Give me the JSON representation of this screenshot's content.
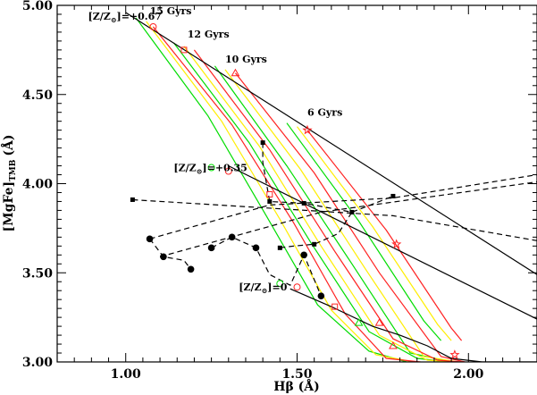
{
  "chart_data": {
    "type": "line",
    "xlabel": "Hβ (Å)",
    "ylabel": "[MgFe]",
    "ylabel_sub": "TMB",
    "ylabel_unit": "(Å)",
    "xlim": [
      0.8,
      2.2
    ],
    "ylim": [
      3.0,
      5.0
    ],
    "x_ticks": [
      1.0,
      1.5,
      2.0
    ],
    "x_tick_labels": [
      "1.00",
      "1.50",
      "2.00"
    ],
    "y_ticks": [
      3.0,
      3.5,
      4.0,
      4.5,
      5.0
    ],
    "y_tick_labels": [
      "3.00",
      "3.50",
      "4.00",
      "4.50",
      "5.00"
    ],
    "annotations": [
      {
        "text": "15 Gyrs",
        "x": 1.07,
        "y": 4.95
      },
      {
        "text": "12 Gyrs",
        "x": 1.18,
        "y": 4.82
      },
      {
        "text": "10 Gyrs",
        "x": 1.29,
        "y": 4.68
      },
      {
        "text": "6 Gyrs",
        "x": 1.53,
        "y": 4.38
      },
      {
        "text": "[Z/Z",
        "sub": "⊙",
        "tail": "]=+0.67",
        "x": 0.89,
        "y": 4.92
      },
      {
        "text": "[Z/Z",
        "sub": "⊙",
        "tail": "]=+0.35",
        "x": 1.14,
        "y": 4.07
      },
      {
        "text": "[Z/Z",
        "sub": "⊙",
        "tail": "]=0",
        "x": 1.33,
        "y": 3.4
      }
    ],
    "series": [
      {
        "color": "#00dd00",
        "style": "solid",
        "x": [
          1.03,
          1.24,
          1.41,
          1.56,
          1.71,
          1.82
        ],
        "y": [
          4.93,
          4.38,
          3.82,
          3.32,
          3.06,
          3.0
        ]
      },
      {
        "color": "#00dd00",
        "style": "solid",
        "x": [
          1.14,
          1.36,
          1.54,
          1.71,
          1.85,
          1.94
        ],
        "y": [
          4.79,
          4.23,
          3.67,
          3.17,
          3.02,
          3.0
        ]
      },
      {
        "color": "#00dd00",
        "style": "solid",
        "x": [
          1.26,
          1.47,
          1.66,
          1.83,
          1.95
        ],
        "y": [
          4.66,
          4.1,
          3.55,
          3.05,
          3.0
        ]
      },
      {
        "color": "#00dd00",
        "style": "solid",
        "x": [
          1.47,
          1.68,
          1.87,
          1.92
        ],
        "y": [
          4.34,
          3.79,
          3.23,
          3.12
        ]
      },
      {
        "color": "#ffee00",
        "style": "solid",
        "x": [
          1.06,
          1.28,
          1.45,
          1.6,
          1.73,
          1.84
        ],
        "y": [
          4.91,
          4.35,
          3.8,
          3.29,
          3.04,
          3.0
        ]
      },
      {
        "color": "#ffee00",
        "style": "solid",
        "x": [
          1.17,
          1.39,
          1.57,
          1.74,
          1.88,
          1.96
        ],
        "y": [
          4.77,
          4.21,
          3.65,
          3.15,
          3.01,
          3.0
        ]
      },
      {
        "color": "#ffee00",
        "style": "solid",
        "x": [
          1.29,
          1.51,
          1.7,
          1.87,
          1.97
        ],
        "y": [
          4.64,
          4.08,
          3.52,
          3.03,
          3.0
        ]
      },
      {
        "color": "#ffee00",
        "style": "solid",
        "x": [
          1.5,
          1.72,
          1.91,
          1.95
        ],
        "y": [
          4.32,
          3.76,
          3.21,
          3.12
        ]
      },
      {
        "color": "#ff2222",
        "style": "solid",
        "x": [
          1.08,
          1.31,
          1.49,
          1.64,
          1.76,
          1.86
        ],
        "y": [
          4.88,
          4.33,
          3.78,
          3.27,
          3.02,
          3.0
        ]
      },
      {
        "color": "#ff2222",
        "style": "solid",
        "x": [
          1.2,
          1.42,
          1.61,
          1.78,
          1.91,
          1.98
        ],
        "y": [
          4.75,
          4.19,
          3.62,
          3.13,
          3.01,
          3.0
        ]
      },
      {
        "color": "#ff2222",
        "style": "solid",
        "x": [
          1.32,
          1.55,
          1.74,
          1.92,
          1.99
        ],
        "y": [
          4.62,
          4.06,
          3.5,
          3.03,
          3.0
        ]
      },
      {
        "color": "#ff2222",
        "style": "solid",
        "x": [
          1.53,
          1.76,
          1.95,
          1.98
        ],
        "y": [
          4.3,
          3.74,
          3.19,
          3.12
        ]
      },
      {
        "color": "#000000",
        "style": "solid",
        "x": [
          1.0,
          2.2
        ],
        "y": [
          4.96,
          3.49
        ]
      },
      {
        "color": "#000000",
        "style": "solid",
        "x": [
          1.3,
          2.2
        ],
        "y": [
          4.1,
          3.24
        ]
      },
      {
        "color": "#000000",
        "style": "solid",
        "x": [
          1.48,
          1.6,
          1.72,
          1.8,
          1.88,
          1.95,
          2.04,
          2.2
        ],
        "y": [
          3.41,
          3.31,
          3.2,
          3.15,
          3.09,
          3.02,
          3.0,
          3.0
        ]
      },
      {
        "color": "#000000",
        "style": "dashed",
        "x": [
          1.02,
          1.78,
          2.2
        ],
        "y": [
          3.91,
          3.82,
          3.68
        ]
      },
      {
        "color": "#000000",
        "style": "dashed",
        "x": [
          1.07,
          1.42,
          1.78,
          2.2
        ],
        "y": [
          3.69,
          3.88,
          3.92,
          4.05
        ]
      },
      {
        "color": "#000000",
        "style": "dashed",
        "x": [
          1.1,
          1.57,
          2.2
        ],
        "y": [
          3.59,
          3.84,
          4.01
        ]
      },
      {
        "color": "#000000",
        "style": "dashed",
        "x": [
          1.4,
          1.4,
          1.42,
          1.52,
          1.66,
          1.78
        ],
        "y": [
          4.23,
          4.12,
          3.9,
          3.89,
          3.84,
          3.93
        ]
      },
      {
        "color": "#000000",
        "style": "dashed",
        "x": [
          1.45,
          1.49,
          1.55,
          1.62,
          1.66
        ],
        "y": [
          3.64,
          3.65,
          3.66,
          3.72,
          3.84
        ]
      },
      {
        "color": "#000000",
        "style": "dashed",
        "x": [
          1.07,
          1.11,
          1.17,
          1.19
        ],
        "y": [
          3.69,
          3.59,
          3.57,
          3.52
        ]
      },
      {
        "color": "#000000",
        "style": "dashed",
        "x": [
          1.25,
          1.31,
          1.38,
          1.42,
          1.48,
          1.52,
          1.57
        ],
        "y": [
          3.64,
          3.7,
          3.64,
          3.49,
          3.43,
          3.6,
          3.37
        ]
      }
    ],
    "markers": [
      {
        "shape": "circle",
        "x": 1.07,
        "y": 3.69
      },
      {
        "shape": "circle",
        "x": 1.11,
        "y": 3.59
      },
      {
        "shape": "circle",
        "x": 1.19,
        "y": 3.52
      },
      {
        "shape": "circle",
        "x": 1.25,
        "y": 3.64
      },
      {
        "shape": "circle",
        "x": 1.31,
        "y": 3.7
      },
      {
        "shape": "circle",
        "x": 1.38,
        "y": 3.64
      },
      {
        "shape": "circle",
        "x": 1.52,
        "y": 3.6
      },
      {
        "shape": "circle",
        "x": 1.57,
        "y": 3.37
      },
      {
        "shape": "square",
        "x": 1.02,
        "y": 3.91
      },
      {
        "shape": "square",
        "x": 1.4,
        "y": 4.23
      },
      {
        "shape": "square",
        "x": 1.42,
        "y": 3.9
      },
      {
        "shape": "square",
        "x": 1.52,
        "y": 3.89
      },
      {
        "shape": "square",
        "x": 1.66,
        "y": 3.84
      },
      {
        "shape": "square",
        "x": 1.78,
        "y": 3.93
      },
      {
        "shape": "square",
        "x": 1.45,
        "y": 3.64
      },
      {
        "shape": "square",
        "x": 1.55,
        "y": 3.66
      },
      {
        "shape": "open-circle",
        "color": "#ff2222",
        "x": 1.08,
        "y": 4.88
      },
      {
        "shape": "open-square",
        "color": "#ff2222",
        "x": 1.17,
        "y": 4.75
      },
      {
        "shape": "open-triangle",
        "color": "#ff2222",
        "x": 1.32,
        "y": 4.62
      },
      {
        "shape": "open-star",
        "color": "#ff2222",
        "x": 1.53,
        "y": 4.3
      },
      {
        "shape": "open-circle",
        "color": "#ff2222",
        "x": 1.3,
        "y": 4.07
      },
      {
        "shape": "open-square",
        "color": "#ff2222",
        "x": 1.42,
        "y": 3.94
      },
      {
        "shape": "open-circle",
        "color": "#00dd00",
        "x": 1.25,
        "y": 4.09
      },
      {
        "shape": "open-circle",
        "color": "#ff2222",
        "x": 1.5,
        "y": 3.42
      },
      {
        "shape": "open-square",
        "color": "#ff2222",
        "x": 1.61,
        "y": 3.31
      },
      {
        "shape": "open-triangle",
        "color": "#ff2222",
        "x": 1.74,
        "y": 3.22
      },
      {
        "shape": "open-star",
        "color": "#ff2222",
        "x": 1.79,
        "y": 3.66
      },
      {
        "shape": "open-star",
        "color": "#ff2222",
        "x": 1.96,
        "y": 3.04
      },
      {
        "shape": "open-triangle",
        "color": "#ff2222",
        "x": 1.78,
        "y": 3.09
      },
      {
        "shape": "open-circle",
        "color": "#00dd00",
        "x": 1.45,
        "y": 3.44
      },
      {
        "shape": "open-triangle",
        "color": "#00dd00",
        "x": 1.68,
        "y": 3.22
      }
    ]
  }
}
